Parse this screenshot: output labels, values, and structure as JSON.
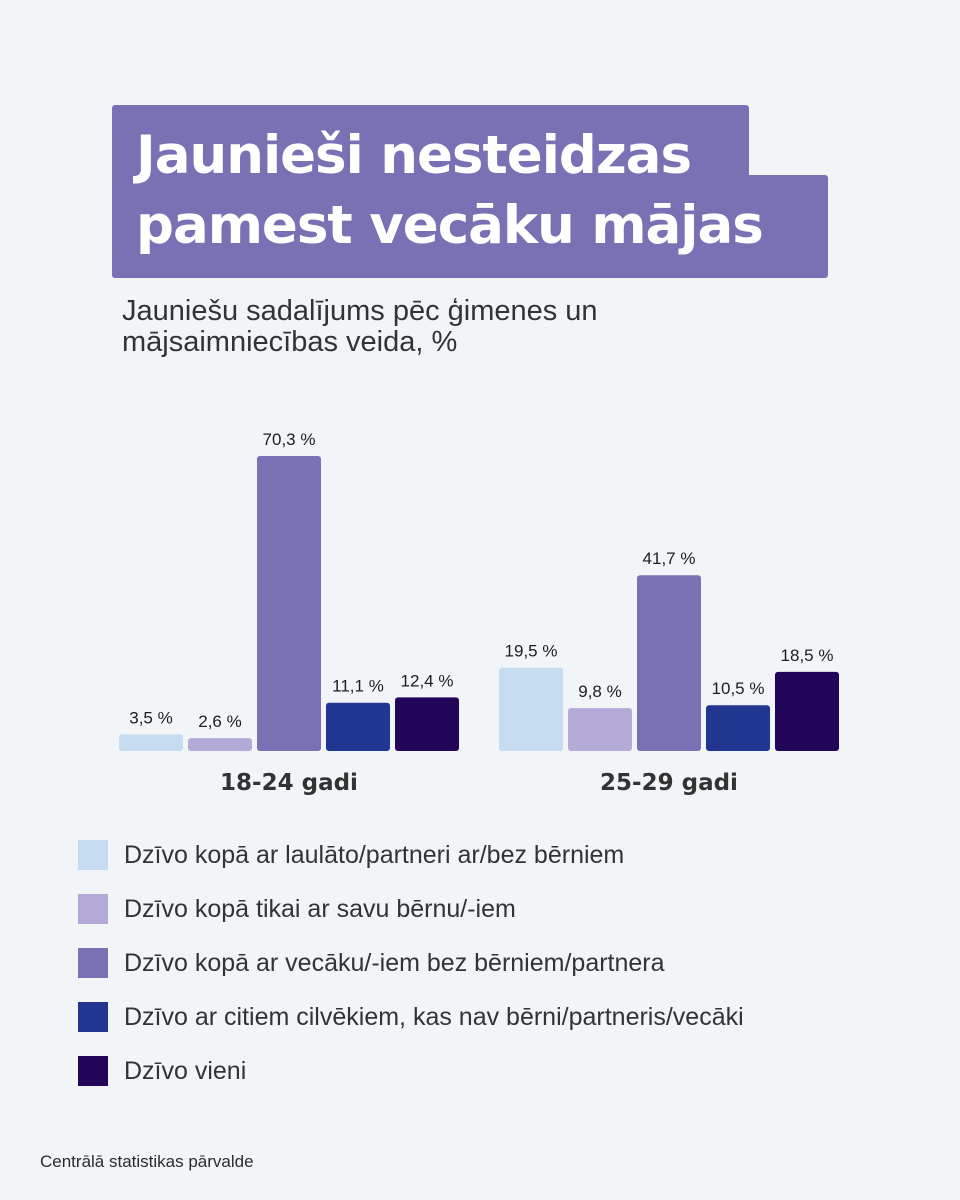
{
  "title": {
    "line1": "Jaunieši nesteidzas",
    "line2": "pamest vecāku mājas"
  },
  "subtitle": "Jauniešu sadalījums pēc ģimenes un mājsaimniecības veida, %",
  "chart_data": {
    "type": "bar",
    "categories": [
      "18-24 gadi",
      "25-29 gadi"
    ],
    "series": [
      {
        "name": "Dzīvo kopā ar laulāto/partneri ar/bez bērniem",
        "color": "#c4dbf0",
        "values": [
          3.5,
          19.5
        ],
        "labels": [
          "3,5 %",
          "19,5 %"
        ]
      },
      {
        "name": "Dzīvo kopā tikai ar savu bērnu/-iem",
        "color": "#b4aad8",
        "values": [
          2.6,
          9.8
        ],
        "labels": [
          "2,6 %",
          "9,8 %"
        ]
      },
      {
        "name": "Dzīvo kopā ar vecāku/-iem bez bērniem/partnera",
        "color": "#7871b3",
        "values": [
          70.3,
          41.7
        ],
        "labels": [
          "70,3 %",
          "41,7 %"
        ]
      },
      {
        "name": "Dzīvo ar citiem cilvēkiem, kas nav bērni/partneris/vecāki",
        "color": "#213690",
        "values": [
          11.1,
          10.5
        ],
        "labels": [
          "11,1 %",
          "10,5 %"
        ]
      },
      {
        "name": "Dzīvo vieni",
        "color": "#22065a",
        "values": [
          12.4,
          18.5
        ],
        "labels": [
          "12,4 %",
          "18,5 %"
        ]
      }
    ],
    "ylim": [
      0,
      70.3
    ],
    "grid": false,
    "legend_position": "bottom"
  },
  "source": "Centrālā statistikas pārvalde"
}
